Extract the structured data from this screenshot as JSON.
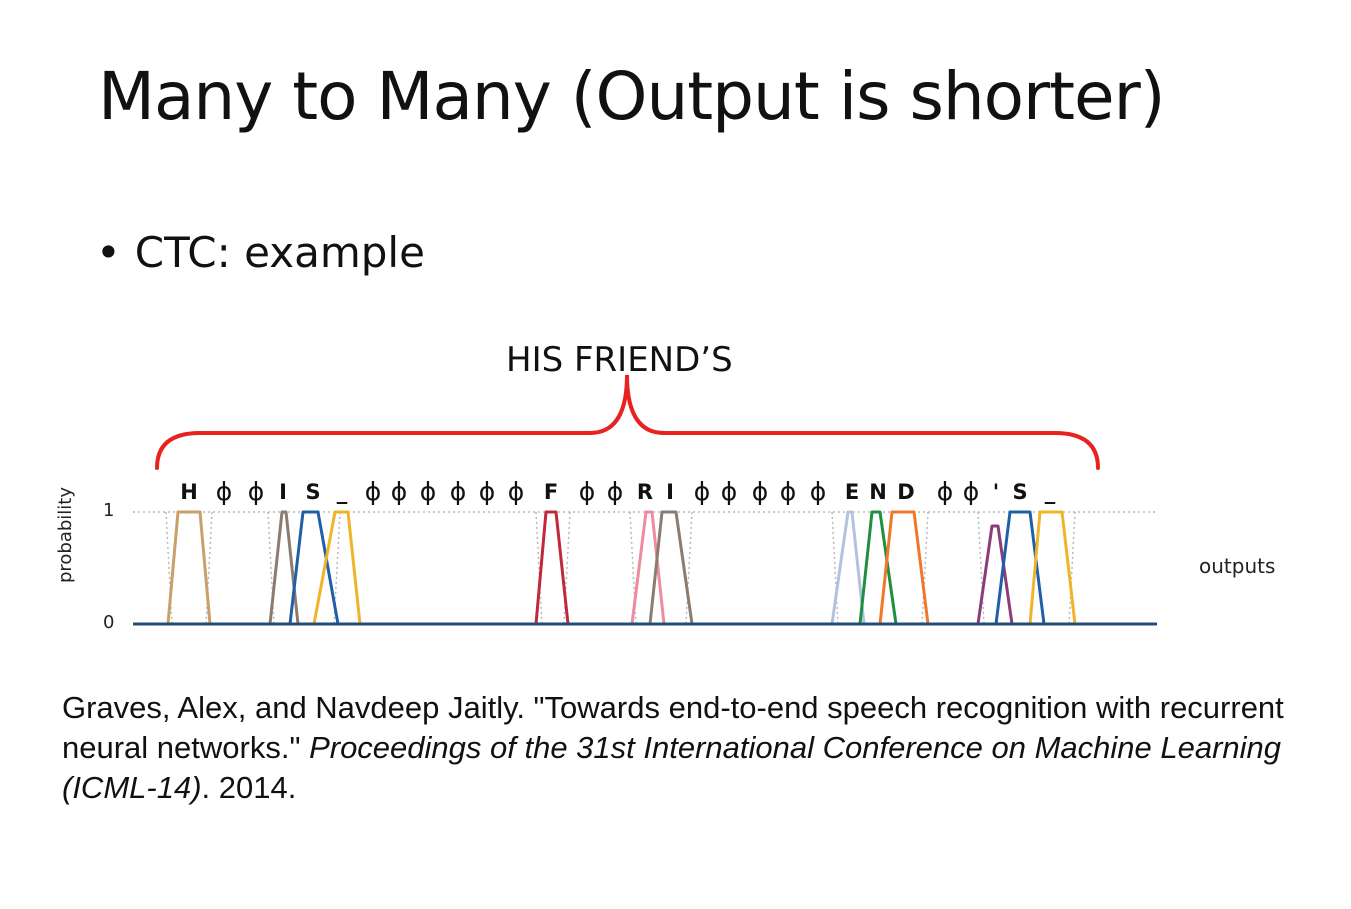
{
  "slide": {
    "title": "Many to Many (Output is shorter)",
    "bullet": "CTC: example",
    "phrase": "HIS FRIEND’S"
  },
  "diagram": {
    "ylabel": "probability",
    "y_ticks": [
      "0",
      "1"
    ],
    "side_label": "outputs",
    "brace_color": "#e8231f",
    "baseline_color": "#1f4e79",
    "labels": [
      "H",
      "ϕ",
      "ϕ",
      "I",
      "S",
      "_",
      "ϕ",
      "ϕ",
      "ϕ",
      "ϕ",
      "ϕ",
      "ϕ",
      "F",
      "ϕ",
      "ϕ",
      "R",
      "I",
      "ϕ",
      "ϕ",
      "ϕ",
      "ϕ",
      "ϕ",
      "E",
      "N",
      "D",
      "ϕ",
      "ϕ",
      "'",
      "S",
      "_"
    ]
  },
  "citation": {
    "plain_1": "Graves, Alex, and Navdeep Jaitly. \"Towards end-to-end speech recognition with recurrent neural networks.\" ",
    "italic": "Proceedings of the 31st International Conference on Machine Learning (ICML-14)",
    "plain_2": ". 2014."
  }
}
